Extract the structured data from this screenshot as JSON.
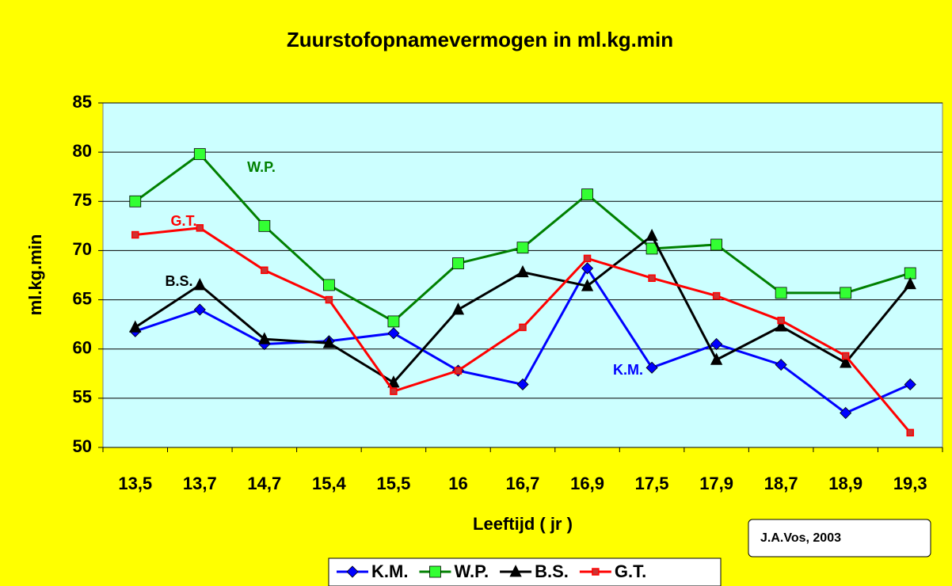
{
  "chart_data": {
    "type": "line",
    "title": "Zuurstofopnamevermogen in ml.kg.min",
    "x_label": "Leeftijd ( jr )",
    "y_label": "ml.kg.min",
    "categories": [
      "13,5",
      "13,7",
      "14,7",
      "15,4",
      "15,5",
      "16",
      "16,7",
      "16,9",
      "17,5",
      "17,9",
      "18,7",
      "18,9",
      "19,3"
    ],
    "series": [
      {
        "name": "K.M.",
        "color": "#0000ff",
        "marker": "diamond",
        "values": [
          61.8,
          64,
          60.5,
          60.8,
          61.6,
          57.8,
          56.4,
          68.2,
          58.1,
          60.5,
          58.4,
          53.5,
          56.4
        ]
      },
      {
        "name": "W.P.",
        "color": "#008000",
        "marker": "square",
        "values": [
          75,
          79.8,
          72.5,
          66.5,
          62.8,
          68.7,
          70.3,
          75.7,
          70.2,
          70.6,
          65.7,
          65.7,
          67.7
        ]
      },
      {
        "name": "B.S.",
        "color": "#000000",
        "marker": "triangle",
        "values": [
          62.2,
          66.5,
          61,
          60.6,
          56.6,
          64,
          67.8,
          66.4,
          71.5,
          58.9,
          62.3,
          58.6,
          66.6
        ]
      },
      {
        "name": "G.T.",
        "color": "#ff0000",
        "marker": "star",
        "values": [
          71.6,
          72.3,
          68,
          65,
          55.7,
          57.8,
          62.2,
          69.2,
          67.2,
          65.4,
          62.9,
          59.3,
          51.5
        ]
      }
    ],
    "annotations": [
      {
        "text": "W.P.",
        "color": "#008000"
      },
      {
        "text": "G.T.",
        "color": "#ff0000"
      },
      {
        "text": "B.S.",
        "color": "#000000"
      },
      {
        "text": "K.M.",
        "color": "#0000ff"
      }
    ],
    "credit": "J.A.Vos, 2003",
    "ylim": [
      50,
      85
    ],
    "yticks": [
      50,
      55,
      60,
      65,
      70,
      75,
      80,
      85
    ],
    "grid": true,
    "legend": "bottom"
  }
}
